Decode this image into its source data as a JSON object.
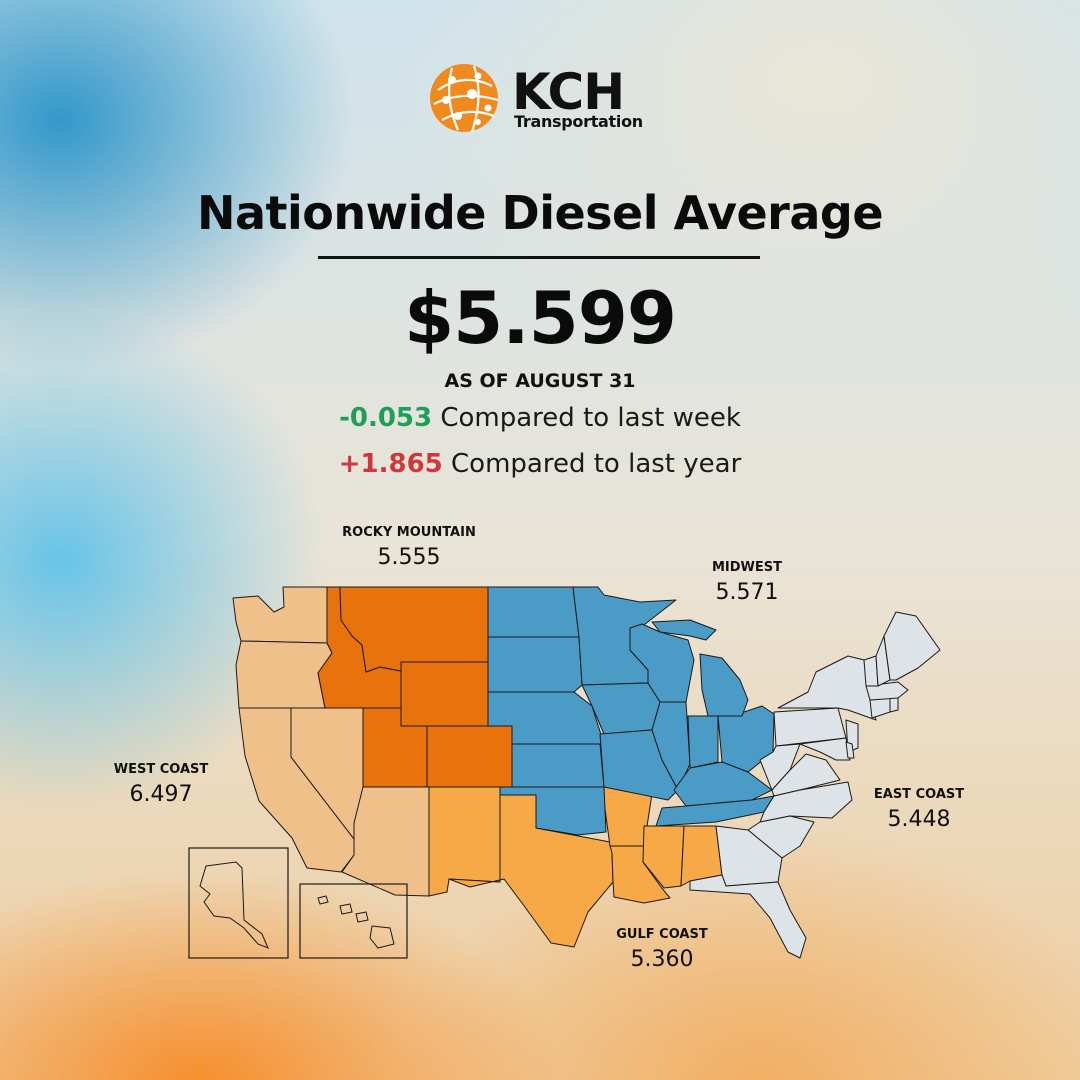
{
  "brand": {
    "name": "KCH",
    "subtitle": "Transportation",
    "logo_color": "#F08A1E"
  },
  "header": {
    "title": "Nationwide Diesel Average",
    "price": "$5.599",
    "as_of": "AS OF AUGUST 31"
  },
  "comparisons": {
    "week": {
      "value": "-0.053",
      "text": "Compared to last week",
      "color": "#1E9E57"
    },
    "year": {
      "value": "+1.865",
      "text": "Compared to last year",
      "color": "#D2363A"
    }
  },
  "regions": {
    "rocky_mountain": {
      "name": "ROCKY MOUNTAIN",
      "value": "5.555",
      "color": "#E8720C"
    },
    "midwest": {
      "name": "MIDWEST",
      "value": "5.571",
      "color": "#4A9BC6"
    },
    "west_coast": {
      "name": "WEST COAST",
      "value": "6.497",
      "color": "#EFC089"
    },
    "east_coast": {
      "name": "EAST COAST",
      "value": "5.448",
      "color": "#DDE3E6"
    },
    "gulf_coast": {
      "name": "GULF COAST",
      "value": "5.360",
      "color": "#F7A948"
    }
  },
  "map_style": {
    "state_stroke": "#1a1a1a"
  }
}
